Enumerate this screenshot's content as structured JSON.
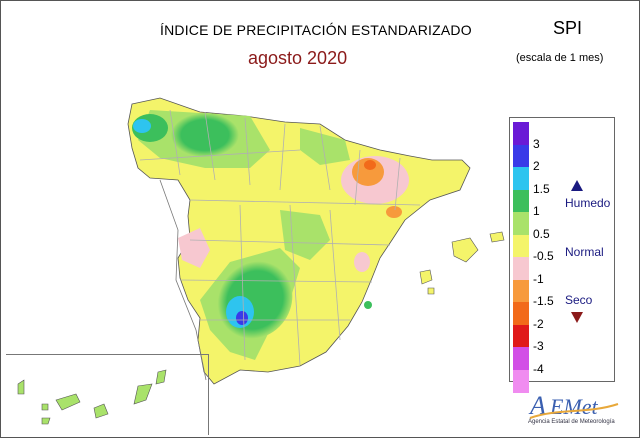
{
  "header": {
    "title": "ÍNDICE DE PRECIPITACIÓN ESTANDARIZADO",
    "period": "agosto 2020",
    "index_name": "SPI",
    "scale_note": "(escala de 1 mes)"
  },
  "legend": {
    "classes": [
      {
        "label": "3",
        "color": "#6a1ad6"
      },
      {
        "label": "2",
        "color": "#3a3ae8"
      },
      {
        "label": "1.5",
        "color": "#2ec4ef"
      },
      {
        "label": "1",
        "color": "#3cbf5c"
      },
      {
        "label": "0.5",
        "color": "#a9e26a"
      },
      {
        "label": "-0.5",
        "color": "#f4f46a"
      },
      {
        "label": "-1",
        "color": "#f7c8d0"
      },
      {
        "label": "-1.5",
        "color": "#f79a3c"
      },
      {
        "label": "-2",
        "color": "#f26a1a"
      },
      {
        "label": "-3",
        "color": "#e01a1a"
      },
      {
        "label": "-4",
        "color": "#d24ee6"
      },
      {
        "label": "",
        "color": "#f08cf0"
      }
    ],
    "categories": {
      "wet": "Humedo",
      "normal": "Normal",
      "dry": "Seco"
    }
  },
  "logo": {
    "name": "AEMet",
    "caption": "Agencia Estatal de Meteorología"
  },
  "colors": {
    "land_normal": "#f4f46a",
    "wet": "#3cbf5c",
    "dry": "#f79a3c",
    "borders": "#b0b0b0"
  }
}
